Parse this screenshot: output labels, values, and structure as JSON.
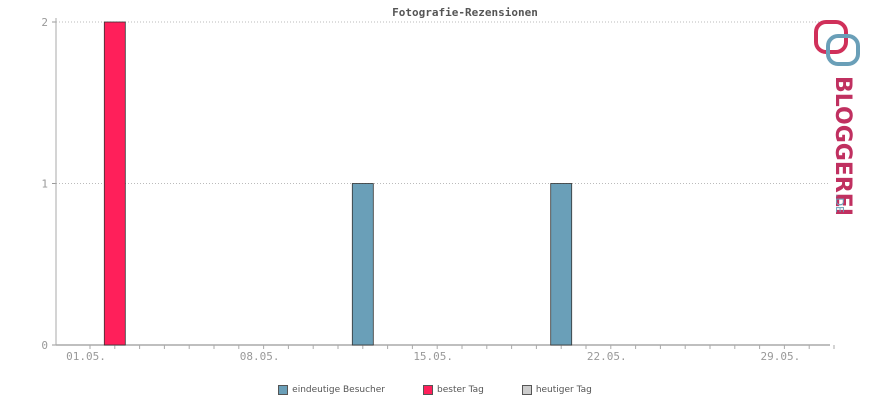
{
  "chart_data": {
    "type": "bar",
    "title": "Fotografie-Rezensionen",
    "x_tick_labels": [
      "01.05.",
      "08.05.",
      "15.05.",
      "22.05.",
      "29.05."
    ],
    "y_ticks": [
      0,
      1,
      2
    ],
    "ylim": [
      0,
      2
    ],
    "grid": true,
    "legend_position": "bottom",
    "series": [
      {
        "name": "eindeutige Besucher",
        "color": "#6a9fb8",
        "points": [
          {
            "day": 12,
            "value": 1
          },
          {
            "day": 20,
            "value": 1
          }
        ]
      },
      {
        "name": "bester Tag",
        "color": "#ff1f5a",
        "points": [
          {
            "day": 2,
            "value": 2
          }
        ]
      },
      {
        "name": "heutiger Tag",
        "color": "#cccccc",
        "points": []
      }
    ]
  },
  "logo": {
    "text": "BLOGGEREI",
    "suffix": ".DE",
    "color_top": "#d0305a",
    "color_bottom": "#6a9fb8"
  }
}
